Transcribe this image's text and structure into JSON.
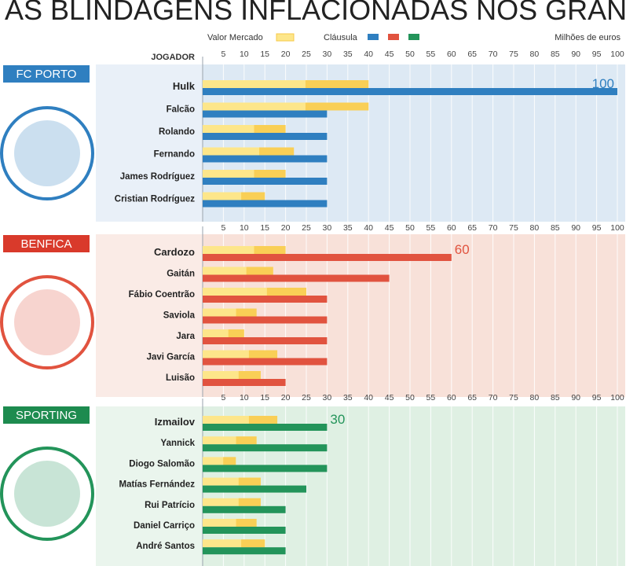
{
  "header": {
    "title": "AS BLINDAGENS INFLACIONADAS NOS GRANDES",
    "legend_valor_label": "Valor Mercado",
    "legend_clausula_label": "Cláusula",
    "unit_label": "Milhões de euros",
    "jogador_label": "JOGADOR"
  },
  "colors": {
    "valor_bar": "#fde68a",
    "valor_bar_highlight": "#f7c948",
    "porto_clausula": "#2f7fc0",
    "porto_bg": "#dde9f4",
    "porto_label_bg": "#2f7fc0",
    "benfica_clausula": "#e1533f",
    "benfica_bg": "#f8e1d9",
    "benfica_label_bg": "#d93a2b",
    "sporting_clausula": "#23945a",
    "sporting_bg": "#dff0e3",
    "sporting_label_bg": "#1d8b4f"
  },
  "chart_data": {
    "type": "bar",
    "orientation": "horizontal",
    "xlabel": "Milhões de euros",
    "xlim": [
      0,
      100
    ],
    "ticks": [
      5,
      10,
      15,
      20,
      25,
      30,
      35,
      40,
      45,
      50,
      55,
      60,
      65,
      70,
      75,
      80,
      85,
      90,
      95,
      100
    ],
    "grid": true,
    "legend": [
      "Valor Mercado",
      "Cláusula"
    ],
    "legend_position": "top",
    "teams": [
      {
        "name": "FC PORTO",
        "color_key": "porto",
        "players": [
          {
            "name": "Hulk",
            "valor_mercado": 40,
            "clausula": 100,
            "bold": true,
            "clausula_label": "100"
          },
          {
            "name": "Falcão",
            "valor_mercado": 40,
            "clausula": 30,
            "bold": false
          },
          {
            "name": "Rolando",
            "valor_mercado": 20,
            "clausula": 30,
            "bold": false
          },
          {
            "name": "Fernando",
            "valor_mercado": 22,
            "clausula": 30,
            "bold": false
          },
          {
            "name": "James Rodríguez",
            "valor_mercado": 20,
            "clausula": 30,
            "bold": false
          },
          {
            "name": "Cristian Rodríguez",
            "valor_mercado": 15,
            "clausula": 30,
            "bold": false
          }
        ]
      },
      {
        "name": "BENFICA",
        "color_key": "benfica",
        "players": [
          {
            "name": "Cardozo",
            "valor_mercado": 20,
            "clausula": 60,
            "bold": true,
            "clausula_label": "60"
          },
          {
            "name": "Gaitán",
            "valor_mercado": 17,
            "clausula": 45,
            "bold": false
          },
          {
            "name": "Fábio Coentrão",
            "valor_mercado": 25,
            "clausula": 30,
            "bold": false
          },
          {
            "name": "Saviola",
            "valor_mercado": 13,
            "clausula": 30,
            "bold": false
          },
          {
            "name": "Jara",
            "valor_mercado": 10,
            "clausula": 30,
            "bold": false
          },
          {
            "name": "Javi García",
            "valor_mercado": 18,
            "clausula": 30,
            "bold": false
          },
          {
            "name": "Luisão",
            "valor_mercado": 14,
            "clausula": 20,
            "bold": false
          }
        ]
      },
      {
        "name": "SPORTING",
        "color_key": "sporting",
        "players": [
          {
            "name": "Izmailov",
            "valor_mercado": 18,
            "clausula": 30,
            "bold": true,
            "clausula_label": "30"
          },
          {
            "name": "Yannick",
            "valor_mercado": 13,
            "clausula": 30,
            "bold": false
          },
          {
            "name": "Diogo Salomão",
            "valor_mercado": 8,
            "clausula": 30,
            "bold": false
          },
          {
            "name": "Matías Fernández",
            "valor_mercado": 14,
            "clausula": 25,
            "bold": false
          },
          {
            "name": "Rui Patrício",
            "valor_mercado": 14,
            "clausula": 20,
            "bold": false
          },
          {
            "name": "Daniel Carriço",
            "valor_mercado": 13,
            "clausula": 20,
            "bold": false
          },
          {
            "name": "André Santos",
            "valor_mercado": 15,
            "clausula": 20,
            "bold": false
          }
        ]
      }
    ]
  }
}
